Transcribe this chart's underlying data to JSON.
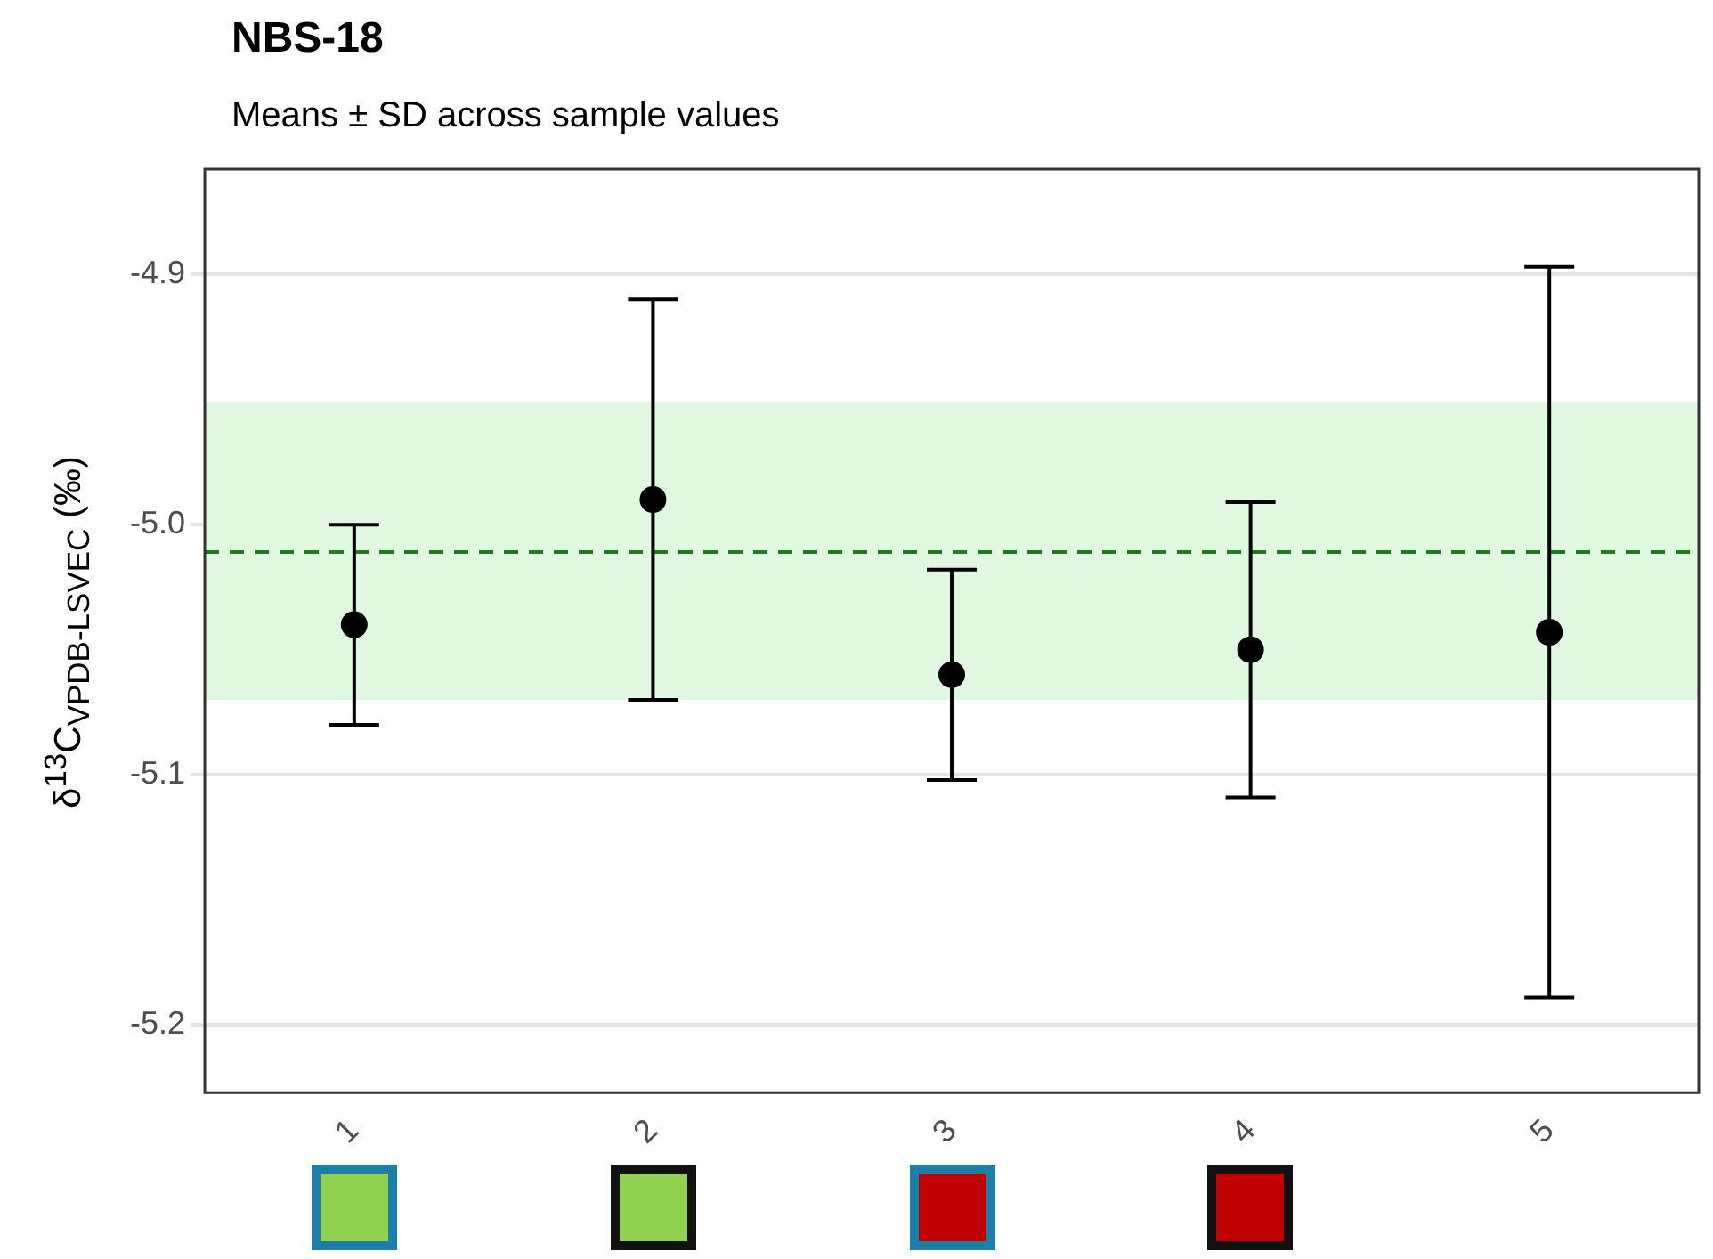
{
  "chart_data": {
    "type": "scatter",
    "title": "NBS-18",
    "subtitle": "Means ± SD across sample values",
    "ylabel": "δ$^{13}$C$_{VPDB-LSVEC}$ (‰)",
    "categories": [
      "1",
      "2",
      "3",
      "4",
      "5"
    ],
    "series": [
      {
        "color": "#000000",
        "values": [
          -5.04,
          -4.99,
          -5.06,
          -5.05,
          -5.043
        ],
        "errors": [
          0.04,
          0.08,
          0.042,
          0.059,
          0.146
        ]
      }
    ],
    "ylim": [
      -5.227,
      -4.858
    ],
    "yticks": [
      -4.9,
      {
        "value": -5.0,
        "label": "-5.0"
      },
      -5.1,
      -5.2
    ],
    "grid": "y",
    "marker": "circle",
    "ref_lines": [
      {
        "axis": "y",
        "value": -5.011,
        "color": "#1e7b1e",
        "line_style": "dashed"
      }
    ],
    "bands": [
      {
        "axis": "y",
        "from": -5.07,
        "to": -4.951,
        "color": "#e0f8e0"
      }
    ]
  }
}
